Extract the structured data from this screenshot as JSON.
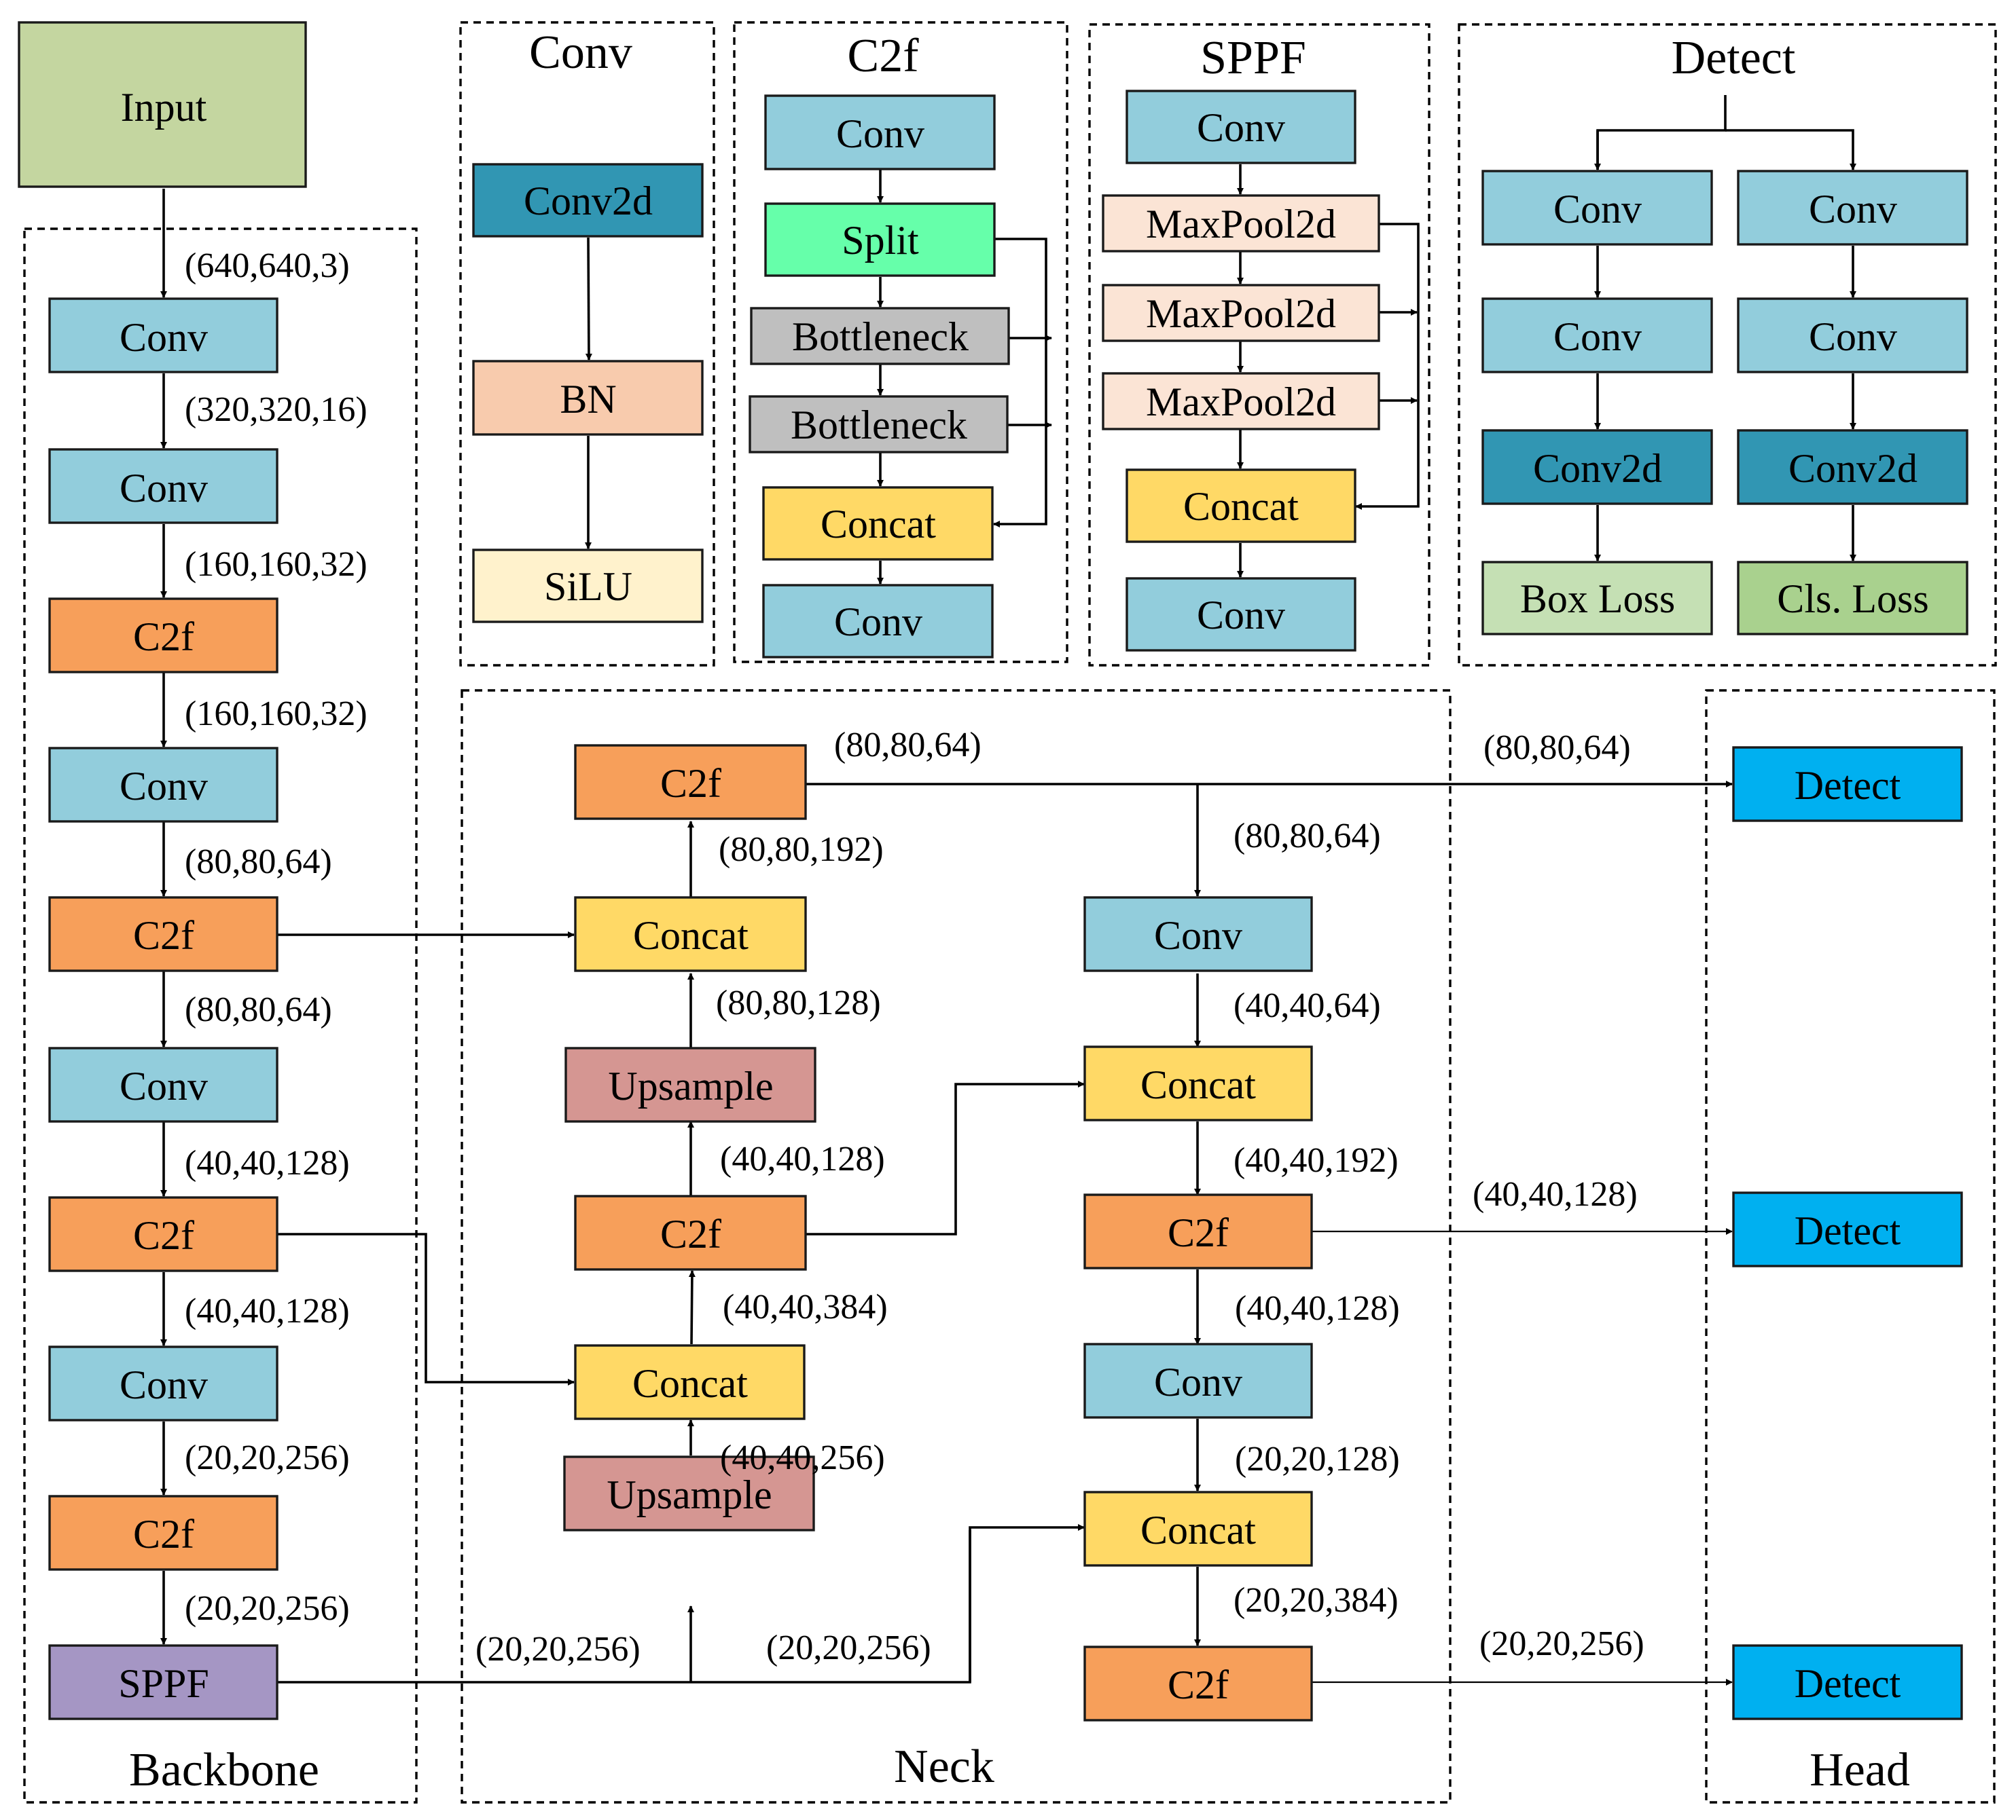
{
  "colors": {
    "input": "#c4d6a0",
    "conv": "#92cddc",
    "c2f": "#f79f5a",
    "sppf": "#a596c4",
    "concat": "#ffd966",
    "upsample": "#d59692",
    "detect": "#00b0f0",
    "conv2d": "#3196b3",
    "bn": "#f8cbad",
    "silu": "#fff2cc",
    "split": "#66ffaa",
    "bottleneck": "#bfbfbf",
    "maxpool": "#fbe4d5",
    "box_loss": "#c5e0b4",
    "cls_loss": "#a9d18e"
  },
  "groups": {
    "backbone": "Backbone",
    "neck": "Neck",
    "head": "Head",
    "conv": "Conv",
    "c2f": "C2f",
    "sppf": "SPPF",
    "detect": "Detect"
  },
  "blocks": {
    "input": "Input",
    "conv": "Conv",
    "c2f": "C2f",
    "sppf": "SPPF",
    "concat": "Concat",
    "upsample": "Upsample",
    "detect": "Detect",
    "conv2d": "Conv2d",
    "bn": "BN",
    "silu": "SiLU",
    "split": "Split",
    "bottleneck": "Bottleneck",
    "maxpool": "MaxPool2d",
    "box_loss": "Box Loss",
    "cls_loss": "Cls. Loss"
  },
  "shapes": {
    "backbone": [
      "(640,640,3)",
      "(320,320,16)",
      "(160,160,32)",
      "(160,160,32)",
      "(80,80,64)",
      "(80,80,64)",
      "(40,40,128)",
      "(40,40,128)",
      "(20,20,256)",
      "(20,20,256)"
    ],
    "neck_left": [
      "(80,80,64)",
      "(80,80,192)",
      "(80,80,128)",
      "(40,40,128)",
      "(40,40,384)",
      "(40,40,256)",
      "(20,20,256)",
      "(20,20,256)"
    ],
    "neck_right": [
      "(80,80,64)",
      "(40,40,64)",
      "(40,40,192)",
      "(40,40,128)",
      "(20,20,128)",
      "(20,20,384)"
    ],
    "head": [
      "(80,80,64)",
      "(40,40,128)",
      "(20,20,256)"
    ]
  }
}
